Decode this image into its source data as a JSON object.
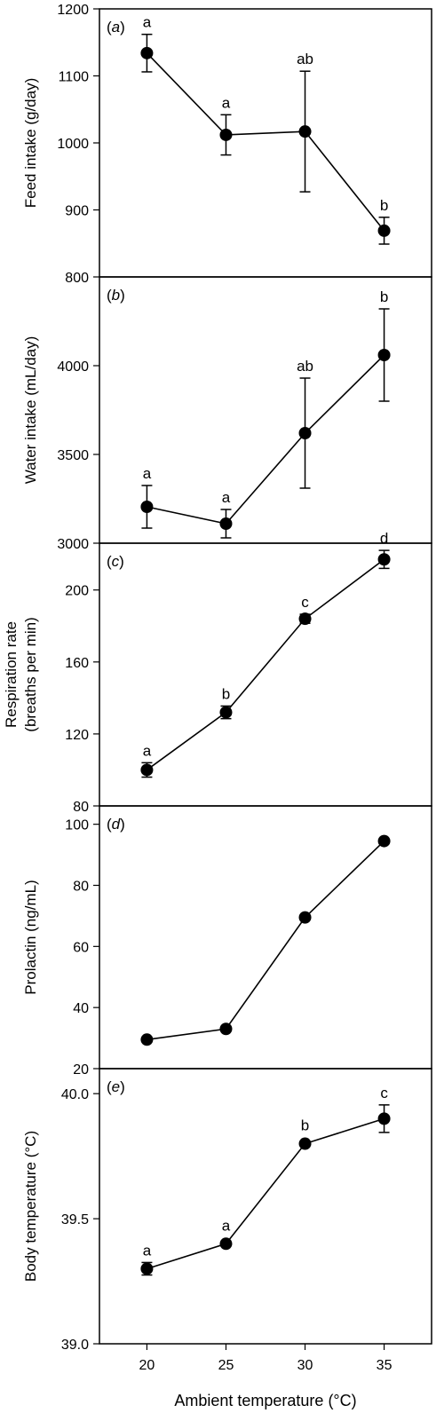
{
  "chart_data": [
    {
      "type": "line",
      "panel_label": "a",
      "ylabel": [
        "Feed intake (g/day)"
      ],
      "ylim": [
        800,
        1200
      ],
      "yticks": [
        800,
        900,
        1000,
        1100,
        1200
      ],
      "x": [
        20,
        25,
        30,
        35
      ],
      "values": [
        1134,
        1012,
        1017,
        869
      ],
      "error": [
        28,
        30,
        90,
        20
      ],
      "annotations": [
        "a",
        "a",
        "ab",
        "b"
      ]
    },
    {
      "type": "line",
      "panel_label": "b",
      "ylabel": [
        "Water intake (mL/day)"
      ],
      "ylim": [
        3000,
        4500
      ],
      "yticks": [
        3000,
        3500,
        4000
      ],
      "x": [
        20,
        25,
        30,
        35
      ],
      "values": [
        3205,
        3110,
        3620,
        4060
      ],
      "error": [
        120,
        80,
        310,
        260
      ],
      "annotations": [
        "a",
        "a",
        "ab",
        "b"
      ]
    },
    {
      "type": "line",
      "panel_label": "c",
      "ylabel": [
        "Respiration rate",
        "(breaths per min)"
      ],
      "ylim": [
        80,
        226
      ],
      "yticks": [
        80,
        120,
        160,
        200
      ],
      "x": [
        20,
        25,
        30,
        35
      ],
      "values": [
        100,
        132,
        184,
        217
      ],
      "error": [
        4,
        3.5,
        2.5,
        5
      ],
      "annotations": [
        "a",
        "b",
        "c",
        "d"
      ]
    },
    {
      "type": "line",
      "panel_label": "d",
      "ylabel": [
        "Prolactin (ng/mL)"
      ],
      "ylim": [
        20,
        106
      ],
      "yticks": [
        20,
        40,
        60,
        80,
        100
      ],
      "x": [
        20,
        25,
        30,
        35
      ],
      "values": [
        29.5,
        33,
        69.5,
        94.5
      ],
      "error": [
        0,
        0,
        0,
        0
      ],
      "annotations": [
        "",
        "",
        "",
        ""
      ]
    },
    {
      "type": "line",
      "panel_label": "e",
      "ylabel": [
        "Body temperature (°C)"
      ],
      "ylim": [
        39.0,
        40.1
      ],
      "yticks": [
        39.0,
        39.5,
        40.0
      ],
      "x": [
        20,
        25,
        30,
        35
      ],
      "values": [
        39.3,
        39.4,
        39.8,
        39.9
      ],
      "error": [
        0.025,
        0,
        0,
        0.055
      ],
      "annotations": [
        "a",
        "a",
        "b",
        "c"
      ]
    }
  ],
  "shared_x": {
    "label": "Ambient temperature (°C)",
    "xlim": [
      17,
      38
    ],
    "ticks": [
      20,
      25,
      30,
      35
    ]
  },
  "colors": {
    "line": "#000000",
    "marker": "#000000",
    "background": "#ffffff"
  }
}
